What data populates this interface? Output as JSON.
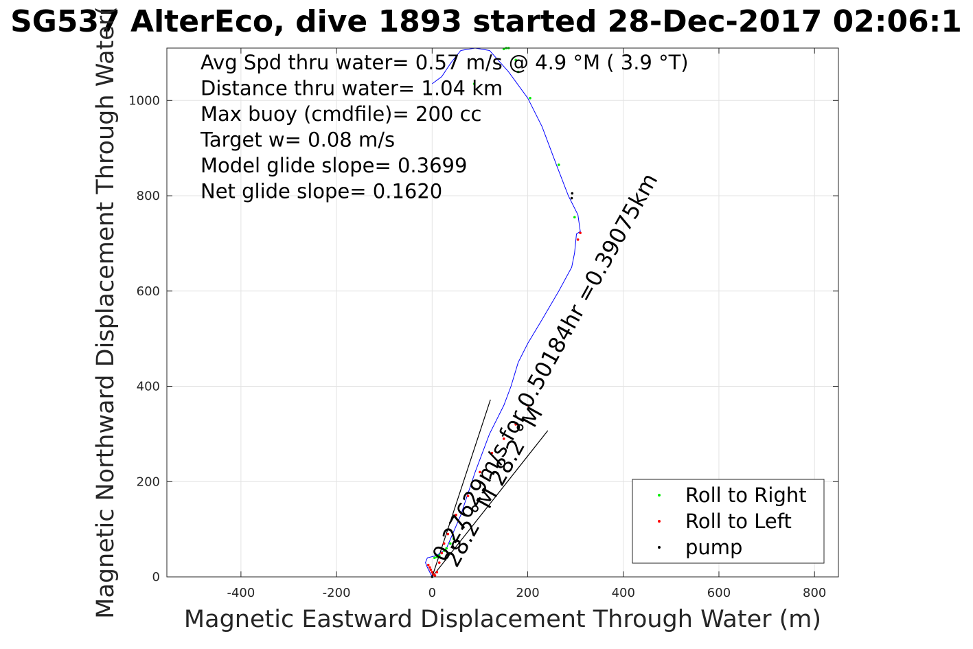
{
  "chart_data": {
    "type": "scatter",
    "title": "SG537 AlterEco, dive 1893 started 28-Dec-2017 02:06:1",
    "xlabel": "Magnetic Eastward Displacement Through Water (m)",
    "ylabel": "Magnetic Northward Displacement Through Water(",
    "xlim": [
      -555,
      850
    ],
    "ylim": [
      0,
      1110
    ],
    "xticks": [
      -400,
      -200,
      0,
      200,
      400,
      600,
      800
    ],
    "yticks": [
      0,
      200,
      400,
      600,
      800,
      1000
    ],
    "grid": true,
    "legend_position": "bottom-right",
    "stats": [
      "Avg Spd thru water=  0.57 m/s @   4.9 °M (  3.9 °T)",
      "Distance thru water=  1.04 km",
      "Max buoy (cmdfile)= 200 cc",
      "Target w= 0.08 m/s",
      "Model glide slope= 0.3699",
      "Net glide slope= 0.1620"
    ],
    "annotations": [
      "0.27629m/s for 0.50184hr =0.39075km",
      "28.2 °M 28.2 °M"
    ],
    "track_line": {
      "name": "",
      "color": "#0000ff",
      "x": [
        0,
        -10,
        -14,
        -10,
        10,
        30,
        60,
        90,
        120,
        150,
        165,
        180,
        200,
        230,
        265,
        292,
        298,
        302,
        310,
        305,
        285,
        260,
        230,
        200,
        160,
        120,
        90,
        60,
        40,
        20,
        0
      ],
      "y": [
        0,
        20,
        30,
        40,
        45,
        60,
        130,
        220,
        300,
        360,
        400,
        450,
        490,
        540,
        600,
        650,
        680,
        720,
        725,
        760,
        800,
        865,
        945,
        1005,
        1060,
        1105,
        1110,
        1105,
        1080,
        1050,
        1035
      ]
    },
    "series": [
      {
        "name": "Roll to Right",
        "color": "#00ee00",
        "x": [
          5,
          10,
          15,
          20,
          25,
          30,
          38,
          45,
          150,
          155,
          175,
          180,
          205,
          265,
          298,
          88,
          160
        ],
        "y": [
          40,
          42,
          45,
          50,
          55,
          60,
          70,
          80,
          1108,
          1110,
          1085,
          1060,
          1005,
          865,
          755,
          1035,
          1110
        ]
      },
      {
        "name": "Roll to Left",
        "color": "#ff0000",
        "x": [
          -8,
          -5,
          -3,
          0,
          3,
          6,
          10,
          15,
          20,
          25,
          33,
          50,
          75,
          100,
          125,
          150,
          175,
          200,
          305,
          310
        ],
        "y": [
          25,
          20,
          15,
          10,
          5,
          3,
          10,
          30,
          50,
          70,
          90,
          130,
          170,
          220,
          260,
          290,
          320,
          360,
          708,
          722
        ]
      },
      {
        "name": "pump",
        "color": "#000000",
        "x": [
          0,
          292,
          293
        ],
        "y": [
          0,
          795,
          805
        ]
      }
    ],
    "rays": [
      {
        "x": [
          0,
          122
        ],
        "y": [
          0,
          372
        ]
      },
      {
        "x": [
          0,
          242
        ],
        "y": [
          0,
          307
        ]
      }
    ]
  }
}
